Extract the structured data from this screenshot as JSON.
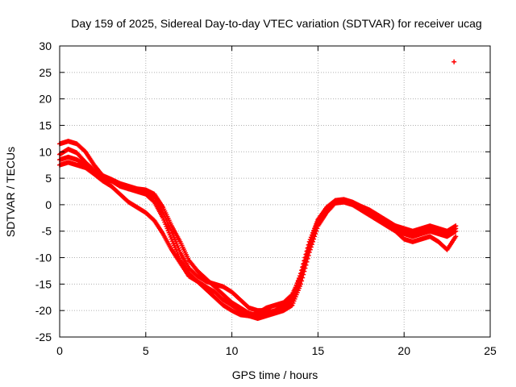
{
  "chart_data": {
    "type": "scatter",
    "title": "Day 159 of 2025, Sidereal Day-to-day VTEC variation (SDTVAR) for receiver ucag",
    "xlabel": "GPS time / hours",
    "ylabel": "SDTVAR / TECUs",
    "xlim": [
      0,
      25
    ],
    "ylim": [
      -25,
      30
    ],
    "xticks": [
      0,
      5,
      10,
      15,
      20,
      25
    ],
    "yticks": [
      -25,
      -20,
      -15,
      -10,
      -5,
      0,
      5,
      10,
      15,
      20,
      25,
      30
    ],
    "grid": true,
    "legend": "none",
    "marker_color": "#ff0000",
    "series": [
      {
        "name": "track-1",
        "x": [
          0.0,
          0.5,
          1.0,
          1.5,
          2.0,
          2.5,
          3.0,
          3.5,
          4.0,
          4.5,
          5.0,
          5.5,
          6.0,
          6.5,
          7.0,
          7.5,
          8.0,
          8.5,
          9.0,
          9.5,
          10.0,
          10.5,
          11.0,
          11.5,
          12.0,
          12.5,
          13.0,
          13.5,
          14.0,
          14.5,
          15.0,
          15.5,
          16.0,
          16.5,
          17.0,
          17.5,
          18.0,
          18.5,
          19.0,
          19.5,
          20.0,
          20.5,
          21.0,
          21.5,
          22.0,
          22.5,
          23.0
        ],
        "y": [
          9.5,
          10.5,
          9.8,
          8.0,
          6.5,
          5.0,
          4.5,
          3.5,
          3.0,
          2.8,
          2.5,
          1.5,
          -1.5,
          -5.0,
          -9.0,
          -12.0,
          -13.5,
          -14.5,
          -15.0,
          -15.5,
          -16.5,
          -18.0,
          -19.5,
          -20.0,
          -20.0,
          -20.3,
          -19.5,
          -18.0,
          -14.0,
          -8.0,
          -3.5,
          -1.0,
          0.5,
          0.8,
          0.3,
          -0.5,
          -1.5,
          -2.5,
          -3.5,
          -4.5,
          -5.5,
          -6.0,
          -5.5,
          -5.0,
          -5.5,
          -6.0,
          -5.0
        ]
      },
      {
        "name": "track-2",
        "x": [
          0.0,
          0.5,
          1.0,
          1.5,
          2.0,
          2.5,
          3.0,
          3.5,
          4.0,
          4.5,
          5.0,
          5.5,
          6.0,
          6.5,
          7.0,
          7.5,
          8.0,
          8.5,
          9.0,
          9.5,
          10.0,
          10.5,
          11.0,
          11.5,
          12.0,
          12.5,
          13.0,
          13.5,
          14.0,
          14.5,
          15.0,
          15.5,
          16.0,
          16.5,
          17.0,
          17.5,
          18.0,
          18.5,
          19.0,
          19.5,
          20.0,
          20.5,
          21.0,
          21.5,
          22.0,
          22.5,
          23.0
        ],
        "y": [
          11.5,
          12.0,
          11.5,
          10.0,
          7.5,
          5.5,
          4.8,
          4.0,
          3.5,
          3.0,
          2.8,
          2.0,
          -0.5,
          -4.0,
          -7.0,
          -10.5,
          -12.5,
          -14.0,
          -15.5,
          -17.0,
          -18.5,
          -19.5,
          -20.5,
          -21.0,
          -20.5,
          -20.0,
          -19.0,
          -17.5,
          -13.0,
          -7.0,
          -2.8,
          -0.5,
          0.8,
          1.0,
          0.5,
          -0.3,
          -1.0,
          -2.0,
          -3.0,
          -4.0,
          -4.5,
          -5.0,
          -4.5,
          -4.0,
          -4.5,
          -5.0,
          -4.0
        ]
      },
      {
        "name": "track-3",
        "x": [
          0.0,
          0.5,
          1.0,
          1.5,
          2.0,
          2.5,
          3.0,
          3.5,
          4.0,
          4.5,
          5.0,
          5.5,
          6.0,
          6.5,
          7.0,
          7.5,
          8.0,
          8.5,
          9.0,
          9.5,
          10.0,
          10.5,
          11.0,
          11.5,
          12.0,
          12.5,
          13.0,
          13.5,
          14.0,
          14.5,
          15.0,
          15.5,
          16.0,
          16.5,
          17.0,
          17.5,
          18.0,
          18.5,
          19.0,
          19.5,
          20.0,
          20.5,
          21.0,
          21.5,
          22.0,
          22.5,
          23.0
        ],
        "y": [
          7.5,
          8.0,
          7.5,
          7.0,
          5.8,
          4.5,
          3.5,
          2.0,
          0.5,
          -0.5,
          -1.5,
          -3.0,
          -5.5,
          -8.5,
          -11.0,
          -13.5,
          -14.5,
          -15.5,
          -16.5,
          -18.0,
          -19.0,
          -20.0,
          -21.0,
          -21.5,
          -21.0,
          -20.5,
          -20.0,
          -19.0,
          -15.0,
          -9.0,
          -4.0,
          -1.5,
          0.3,
          0.5,
          0.0,
          -1.0,
          -2.0,
          -3.0,
          -4.0,
          -5.0,
          -6.5,
          -7.0,
          -6.5,
          -6.0,
          -7.0,
          -8.5,
          -6.0
        ]
      },
      {
        "name": "track-4",
        "x": [
          0.0,
          0.5,
          1.0,
          1.5,
          2.0,
          2.5,
          3.0,
          3.5,
          4.0,
          4.5,
          5.0,
          5.5,
          6.0,
          6.5,
          7.0,
          7.5,
          8.0,
          8.5,
          9.0,
          9.5,
          10.0,
          10.5,
          11.0,
          11.5,
          12.0,
          12.5,
          13.0,
          13.5,
          14.0,
          14.5,
          15.0,
          15.5,
          16.0,
          16.5,
          17.0,
          17.5,
          18.0,
          18.5,
          19.0,
          19.5,
          20.0,
          20.5,
          21.0,
          21.5,
          22.0,
          22.5,
          23.0
        ],
        "y": [
          8.5,
          9.0,
          8.5,
          7.5,
          6.0,
          5.0,
          4.5,
          4.0,
          3.0,
          2.5,
          2.0,
          0.5,
          -2.5,
          -6.5,
          -10.5,
          -13.0,
          -14.5,
          -16.0,
          -17.5,
          -19.0,
          -20.0,
          -20.8,
          -21.0,
          -20.5,
          -19.5,
          -19.0,
          -18.5,
          -17.0,
          -13.5,
          -7.5,
          -3.0,
          -0.8,
          0.6,
          0.9,
          0.4,
          -0.5,
          -1.5,
          -2.5,
          -3.5,
          -4.0,
          -4.8,
          -5.5,
          -5.0,
          -4.5,
          -5.0,
          -5.5,
          -4.5
        ]
      },
      {
        "name": "outlier",
        "x": [
          22.9
        ],
        "y": [
          27.0
        ]
      }
    ]
  }
}
